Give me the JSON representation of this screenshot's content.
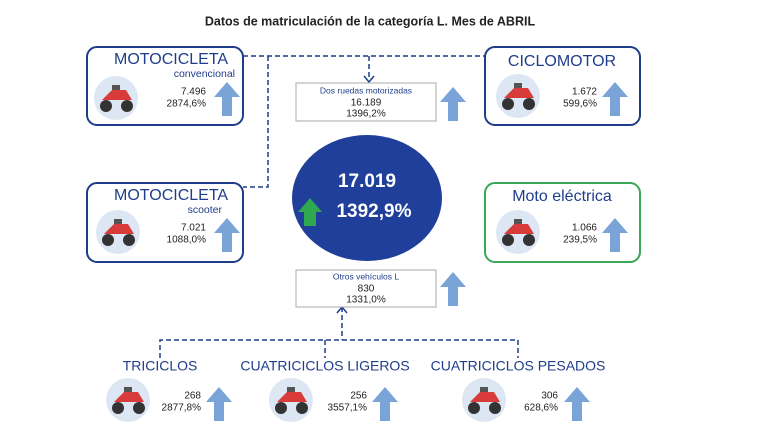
{
  "header": {
    "title": "Datos de matriculación de la categoría L. Mes de ABRIL"
  },
  "total": {
    "value": "17.019",
    "change": "1392,9%"
  },
  "dos_ruedas": {
    "label": "Dos ruedas motorizadas",
    "value": "16.189",
    "change": "1396,2%"
  },
  "otros": {
    "label": "Otros vehículos L",
    "value": "830",
    "change": "1331,0%"
  },
  "boxes": [
    {
      "title": "MOTOCICLETA",
      "subtitle": "convencional",
      "value": "7.496",
      "change": "2874,6%"
    },
    {
      "title": "CICLOMOTOR",
      "value": "1.672",
      "change": "599,6%"
    },
    {
      "title": "MOTOCICLETA",
      "subtitle": "scooter",
      "value": "7.021",
      "change": "1088,0%"
    },
    {
      "title": "Moto eléctrica",
      "value": "1.066",
      "change": "239,5%"
    }
  ],
  "bottom": [
    {
      "title": "TRICICLOS",
      "value": "268",
      "change": "2877,8%"
    },
    {
      "title": "CUATRICICLOS LIGEROS",
      "value": "256",
      "change": "3557,1%"
    },
    {
      "title": "CUATRICICLOS PESADOS",
      "value": "306",
      "change": "628,6%"
    }
  ]
}
